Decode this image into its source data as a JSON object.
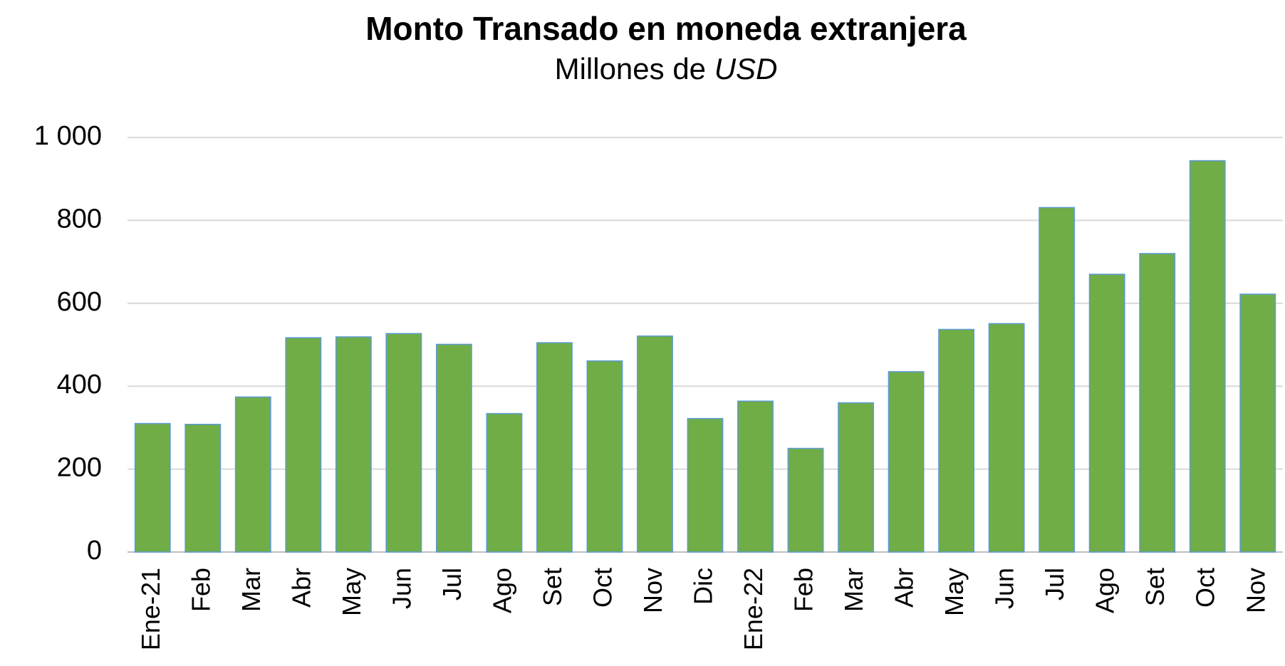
{
  "chart_data": {
    "type": "bar",
    "title": "Monto Transado en moneda extranjera",
    "subtitle": "Millones de",
    "subtitle_unit": "USD",
    "categories": [
      "Ene-21",
      "Feb",
      "Mar",
      "Abr",
      "May",
      "Jun",
      "Jul",
      "Ago",
      "Set",
      "Oct",
      "Nov",
      "Dic",
      "Ene-22",
      "Feb",
      "Mar",
      "Abr",
      "May",
      "Jun",
      "Jul",
      "Ago",
      "Set",
      "Oct",
      "Nov"
    ],
    "values": [
      310,
      308,
      374,
      517,
      519,
      527,
      501,
      334,
      505,
      461,
      521,
      322,
      364,
      250,
      360,
      435,
      537,
      551,
      831,
      670,
      720,
      944,
      622
    ],
    "color": "#70ad47",
    "ylim": [
      0,
      1000
    ],
    "yticks": [
      0,
      200,
      400,
      600,
      800,
      {
        "value": 1000,
        "label": "1 000"
      }
    ],
    "grid": true
  }
}
